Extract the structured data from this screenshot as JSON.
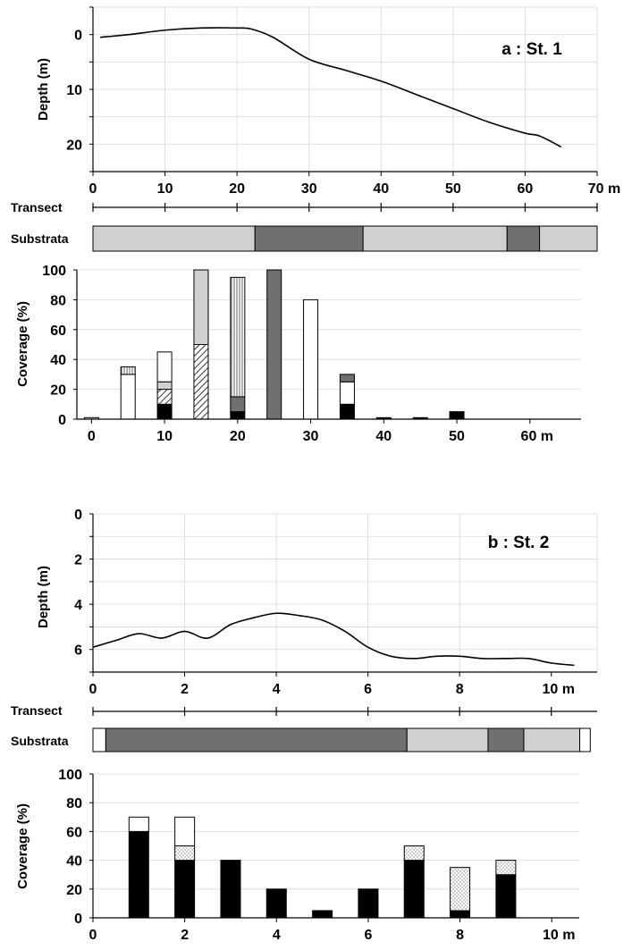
{
  "colors": {
    "substrate_light": "#d0d0d0",
    "substrate_dark": "#707070",
    "substrate_white": "#ffffff",
    "black": "#000000",
    "light_gray": "#d0d0d0",
    "dark_gray": "#707070",
    "grid": "#d8d8d8"
  },
  "chart_data": [
    {
      "type": "line",
      "panel": "a",
      "title": "a : St. 1",
      "ylabel": "Depth (m)",
      "xlabel": "",
      "x_ticks": [
        "0",
        "10",
        "20",
        "30",
        "40",
        "50",
        "60"
      ],
      "x_end_label": "70 m",
      "xlim": [
        0,
        70
      ],
      "y_ticks": [
        "0",
        "10",
        "20"
      ],
      "ylim": [
        -5,
        25
      ],
      "y_inverted": true,
      "grid": true,
      "x": [
        1,
        5,
        10,
        15,
        20,
        22,
        25,
        30,
        35,
        40,
        45,
        50,
        55,
        60,
        62,
        65
      ],
      "y": [
        0.5,
        0,
        -0.8,
        -1.2,
        -1.2,
        -1,
        0.5,
        4.5,
        6.5,
        8.5,
        11,
        13.5,
        16,
        18,
        18.5,
        20.5
      ]
    },
    {
      "type": "bar",
      "panel": "a-transect",
      "transect_label": "Transect",
      "substrata_label": "Substrata",
      "xlim": [
        0,
        70
      ],
      "transect_ticks": [
        0,
        10,
        20,
        30,
        40,
        50,
        60,
        70
      ],
      "substrata": [
        {
          "from": 0,
          "to": 22.5,
          "color": "substrate_light"
        },
        {
          "from": 22.5,
          "to": 37.5,
          "color": "substrate_dark"
        },
        {
          "from": 37.5,
          "to": 57.5,
          "color": "substrate_light"
        },
        {
          "from": 57.5,
          "to": 62,
          "color": "substrate_dark"
        },
        {
          "from": 62,
          "to": 70,
          "color": "substrate_light"
        }
      ]
    },
    {
      "type": "bar",
      "panel": "a-coverage",
      "ylabel": "Coverage (%)",
      "y_ticks": [
        "0",
        "20",
        "40",
        "60",
        "80",
        "100"
      ],
      "ylim": [
        0,
        100
      ],
      "x_ticks": [
        "0",
        "10",
        "20",
        "30",
        "40",
        "50"
      ],
      "x_tick_values": [
        0,
        10,
        20,
        30,
        40,
        50
      ],
      "x_end_label": "60 m",
      "x_end_value": 60,
      "xlim": [
        -2,
        67
      ],
      "grid": true,
      "stacks": [
        {
          "x": 0,
          "segments": [
            {
              "value": 1,
              "fill": "white"
            }
          ]
        },
        {
          "x": 5,
          "segments": [
            {
              "value": 30,
              "fill": "white"
            },
            {
              "value": 5,
              "fill": "vlines"
            }
          ]
        },
        {
          "x": 10,
          "segments": [
            {
              "value": 10,
              "fill": "black"
            },
            {
              "value": 10,
              "fill": "hatch"
            },
            {
              "value": 5,
              "fill": "light_gray"
            },
            {
              "value": 20,
              "fill": "white"
            }
          ]
        },
        {
          "x": 15,
          "segments": [
            {
              "value": 50,
              "fill": "hatch"
            },
            {
              "value": 50,
              "fill": "light_gray"
            }
          ]
        },
        {
          "x": 20,
          "segments": [
            {
              "value": 5,
              "fill": "black"
            },
            {
              "value": 10,
              "fill": "dark_gray"
            },
            {
              "value": 80,
              "fill": "vlines"
            }
          ]
        },
        {
          "x": 25,
          "segments": [
            {
              "value": 100,
              "fill": "dark_gray"
            }
          ]
        },
        {
          "x": 30,
          "segments": [
            {
              "value": 80,
              "fill": "white"
            }
          ]
        },
        {
          "x": 35,
          "segments": [
            {
              "value": 10,
              "fill": "black"
            },
            {
              "value": 15,
              "fill": "white"
            },
            {
              "value": 5,
              "fill": "dark_gray"
            }
          ]
        },
        {
          "x": 40,
          "segments": [
            {
              "value": 1,
              "fill": "black"
            }
          ]
        },
        {
          "x": 45,
          "segments": [
            {
              "value": 1,
              "fill": "black"
            }
          ]
        },
        {
          "x": 50,
          "segments": [
            {
              "value": 5,
              "fill": "black"
            }
          ]
        }
      ]
    },
    {
      "type": "line",
      "panel": "b",
      "title": "b : St. 2",
      "ylabel": "Depth (m)",
      "xlabel": "",
      "x_ticks": [
        "0",
        "2",
        "4",
        "6",
        "8"
      ],
      "x_end_label": "10 m",
      "xlim": [
        0,
        11
      ],
      "y_ticks": [
        "0",
        "2",
        "4",
        "6"
      ],
      "ylim": [
        0,
        7
      ],
      "y_inverted": true,
      "grid": true,
      "x": [
        0,
        0.5,
        1,
        1.5,
        2,
        2.5,
        3,
        3.5,
        4,
        4.5,
        5,
        5.5,
        6,
        6.5,
        7,
        7.5,
        8,
        8.5,
        9,
        9.5,
        10,
        10.5
      ],
      "y": [
        5.9,
        5.6,
        5.3,
        5.5,
        5.2,
        5.5,
        4.9,
        4.6,
        4.4,
        4.5,
        4.7,
        5.2,
        5.9,
        6.3,
        6.4,
        6.3,
        6.3,
        6.4,
        6.4,
        6.4,
        6.6,
        6.7
      ]
    },
    {
      "type": "bar",
      "panel": "b-transect",
      "transect_label": "Transect",
      "substrata_label": "Substrata",
      "xlim": [
        0,
        11
      ],
      "transect_ticks": [
        0,
        2,
        4,
        6,
        8,
        10
      ],
      "substrata": [
        {
          "from": 0,
          "to": 0.28,
          "color": "substrate_white"
        },
        {
          "from": 0.28,
          "to": 6.85,
          "color": "substrate_dark"
        },
        {
          "from": 6.85,
          "to": 8.62,
          "color": "substrate_light"
        },
        {
          "from": 8.62,
          "to": 9.4,
          "color": "substrate_dark"
        },
        {
          "from": 9.4,
          "to": 10.62,
          "color": "substrate_light"
        },
        {
          "from": 10.62,
          "to": 10.85,
          "color": "substrate_white"
        }
      ]
    },
    {
      "type": "bar",
      "panel": "b-coverage",
      "ylabel": "Coverage (%)",
      "y_ticks": [
        "0",
        "20",
        "40",
        "60",
        "80",
        "100"
      ],
      "ylim": [
        0,
        100
      ],
      "x_ticks": [
        "0",
        "2",
        "4",
        "6",
        "8"
      ],
      "x_tick_values": [
        0,
        2,
        4,
        6,
        8
      ],
      "x_end_label": "10 m",
      "x_end_value": 10,
      "xlim": [
        0,
        10.6
      ],
      "grid": true,
      "stacks": [
        {
          "x": 1,
          "segments": [
            {
              "value": 60,
              "fill": "black"
            },
            {
              "value": 10,
              "fill": "white"
            }
          ]
        },
        {
          "x": 2,
          "segments": [
            {
              "value": 40,
              "fill": "black"
            },
            {
              "value": 10,
              "fill": "dots"
            },
            {
              "value": 20,
              "fill": "white"
            }
          ]
        },
        {
          "x": 3,
          "segments": [
            {
              "value": 40,
              "fill": "black"
            }
          ]
        },
        {
          "x": 4,
          "segments": [
            {
              "value": 20,
              "fill": "black"
            }
          ]
        },
        {
          "x": 5,
          "segments": [
            {
              "value": 5,
              "fill": "black"
            }
          ]
        },
        {
          "x": 6,
          "segments": [
            {
              "value": 20,
              "fill": "black"
            }
          ]
        },
        {
          "x": 7,
          "segments": [
            {
              "value": 40,
              "fill": "black"
            },
            {
              "value": 10,
              "fill": "dots"
            }
          ]
        },
        {
          "x": 8,
          "segments": [
            {
              "value": 5,
              "fill": "black"
            },
            {
              "value": 30,
              "fill": "dots"
            }
          ]
        },
        {
          "x": 9,
          "segments": [
            {
              "value": 30,
              "fill": "black"
            },
            {
              "value": 10,
              "fill": "dots"
            }
          ]
        }
      ]
    }
  ]
}
